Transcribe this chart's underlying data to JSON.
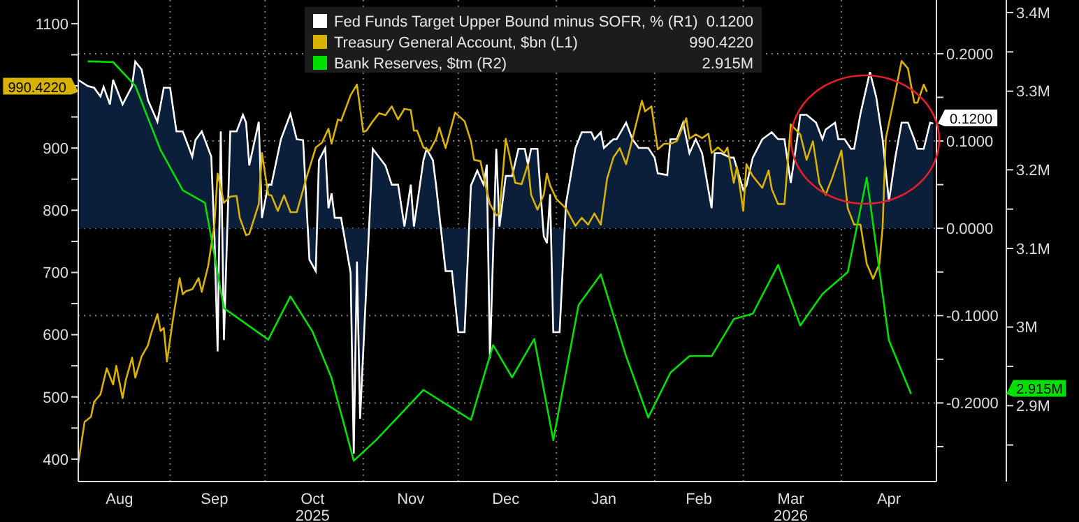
{
  "chart_data": {
    "type": "line",
    "legend": "top",
    "grid": true,
    "xlim": [
      "2025-08-03",
      "2026-05-01"
    ],
    "xticks": [
      {
        "value": "2025-08-16",
        "label": "Aug"
      },
      {
        "value": "2025-09-01",
        "label": null
      },
      {
        "value": "2025-09-15",
        "label": "Sep"
      },
      {
        "value": "2025-10-01",
        "label": null
      },
      {
        "value": "2025-10-16",
        "label": "Oct\n2025"
      },
      {
        "value": "2025-11-01",
        "label": null
      },
      {
        "value": "2025-11-16",
        "label": "Nov"
      },
      {
        "value": "2025-12-01",
        "label": null
      },
      {
        "value": "2025-12-16",
        "label": "Dec"
      },
      {
        "value": "2026-01-01",
        "label": null
      },
      {
        "value": "2026-01-16",
        "label": "Jan"
      },
      {
        "value": "2026-02-01",
        "label": null
      },
      {
        "value": "2026-02-15",
        "label": "Feb"
      },
      {
        "value": "2026-03-01",
        "label": null
      },
      {
        "value": "2026-03-16",
        "label": "Mar\n2026"
      },
      {
        "value": "2026-04-01",
        "label": null
      },
      {
        "value": "2026-04-16",
        "label": "Apr"
      },
      {
        "value": "2026-05-01",
        "label": null
      }
    ],
    "ylim": [
      364,
      1138
    ],
    "yticks": [
      400,
      {
        "value": 450,
        "label": null
      },
      500,
      {
        "value": 550,
        "label": null
      },
      600,
      {
        "value": 650,
        "label": null
      },
      700,
      {
        "value": 750,
        "label": null
      },
      800,
      {
        "value": 850,
        "label": null
      },
      900,
      {
        "value": 950,
        "label": null
      },
      {
        "value": 1000,
        "label": null
      },
      {
        "value": 1050,
        "label": null
      },
      1100
    ],
    "y2lim": [
      -0.29,
      0.2615
    ],
    "y2ticks": [
      {
        "value": -0.25,
        "label": null
      },
      {
        "value": -0.2,
        "label": "-0.2000"
      },
      {
        "value": -0.15,
        "label": null
      },
      {
        "value": -0.1,
        "label": "-0.1000"
      },
      {
        "value": -0.05,
        "label": null
      },
      {
        "value": 0,
        "label": "0.0000"
      },
      {
        "value": 0.05,
        "label": null
      },
      {
        "value": 0.1,
        "label": "0.1000"
      },
      {
        "value": 0.15,
        "label": null
      },
      {
        "value": 0.2,
        "label": "0.2000"
      }
    ],
    "y3lim": [
      2.8035,
      3.416
    ],
    "y3ticks": [
      {
        "value": 2.85,
        "label": null
      },
      {
        "value": 2.9,
        "label": "2.9M"
      },
      {
        "value": 2.95,
        "label": null
      },
      {
        "value": 3.0,
        "label": "3M"
      },
      {
        "value": 3.1,
        "label": "3.1M"
      },
      {
        "value": 3.15,
        "label": null
      },
      {
        "value": 3.2,
        "label": "3.2M"
      },
      {
        "value": 3.3,
        "label": "3.3M"
      },
      {
        "value": 3.35,
        "label": null
      },
      {
        "value": 3.4,
        "label": "3.4M"
      }
    ],
    "annotations": [
      "0.1200",
      "990.4220",
      "2.915M"
    ],
    "series": [
      {
        "name": "Fed Funds Target Upper Bound minus SOFR, % (R1)",
        "type": "area",
        "axis": "y2",
        "color": "#ffffff",
        "x": [
          "2025-08-03",
          "2025-08-06",
          "2025-08-08",
          "2025-08-10",
          "2025-08-11",
          "2025-08-13",
          "2025-08-14",
          "2025-08-17",
          "2025-08-20",
          "2025-08-21",
          "2025-08-23",
          "2025-08-25",
          "2025-08-28",
          "2025-08-30",
          "2025-09-01",
          "2025-09-03",
          "2025-09-05",
          "2025-09-08",
          "2025-09-09",
          "2025-09-11",
          "2025-09-14",
          "2025-09-15",
          "2025-09-16",
          "2025-09-17",
          "2025-09-18",
          "2025-09-20",
          "2025-09-22",
          "2025-09-24",
          "2025-09-25",
          "2025-09-26",
          "2025-09-29",
          "2025-09-30",
          "2025-10-02",
          "2025-10-03",
          "2025-10-06",
          "2025-10-09",
          "2025-10-11",
          "2025-10-13",
          "2025-10-15",
          "2025-10-17",
          "2025-10-18",
          "2025-10-20",
          "2025-10-21",
          "2025-10-22",
          "2025-10-23",
          "2025-10-25",
          "2025-10-28",
          "2025-10-29",
          "2025-10-30",
          "2025-10-31",
          "2025-11-04",
          "2025-11-08",
          "2025-11-10",
          "2025-11-12",
          "2025-11-14",
          "2025-11-16",
          "2025-11-17",
          "2025-11-20",
          "2025-11-21",
          "2025-11-23",
          "2025-11-24",
          "2025-11-27",
          "2025-11-29",
          "2025-12-01",
          "2025-12-03",
          "2025-12-05",
          "2025-12-07",
          "2025-12-09",
          "2025-12-10",
          "2025-12-11",
          "2025-12-13",
          "2025-12-14",
          "2025-12-16",
          "2025-12-18",
          "2025-12-20",
          "2025-12-22",
          "2025-12-23",
          "2025-12-24",
          "2025-12-26",
          "2025-12-28",
          "2025-12-29",
          "2025-12-30",
          "2025-12-31",
          "2026-01-02",
          "2026-01-04",
          "2026-01-07",
          "2026-01-09",
          "2026-01-12",
          "2026-01-13",
          "2026-01-15",
          "2026-01-16",
          "2026-01-19",
          "2026-01-20",
          "2026-01-23",
          "2026-01-25",
          "2026-01-27",
          "2026-01-30",
          "2026-02-01",
          "2026-02-02",
          "2026-02-05",
          "2026-02-06",
          "2026-02-08",
          "2026-02-10",
          "2026-02-12",
          "2026-02-14",
          "2026-02-16",
          "2026-02-18",
          "2026-02-19",
          "2026-02-20",
          "2026-02-22",
          "2026-02-25",
          "2026-02-26",
          "2026-03-01",
          "2026-03-02",
          "2026-03-04",
          "2026-03-07",
          "2026-03-10",
          "2026-03-12",
          "2026-03-14",
          "2026-03-16",
          "2026-03-18",
          "2026-03-19",
          "2026-03-21",
          "2026-03-24",
          "2026-03-26",
          "2026-03-27",
          "2026-03-30",
          "2026-03-31",
          "2026-04-02",
          "2026-04-04",
          "2026-04-05",
          "2026-04-07",
          "2026-04-10",
          "2026-04-12",
          "2026-04-14",
          "2026-04-16",
          "2026-04-18",
          "2026-04-20",
          "2026-04-22",
          "2026-04-24",
          "2026-04-25",
          "2026-04-27",
          "2026-04-29",
          "2026-04-30"
        ],
        "values": [
          0.17,
          0.163,
          0.161,
          0.151,
          0.162,
          0.142,
          0.17,
          0.142,
          0.163,
          0.191,
          0.182,
          0.147,
          0.122,
          0.161,
          0.161,
          0.111,
          0.111,
          0.082,
          0.101,
          0.111,
          0.082,
          -0.009,
          -0.141,
          0.111,
          -0.128,
          0.111,
          0.111,
          0.13,
          0.121,
          0.072,
          0.122,
          0.012,
          0.05,
          0.05,
          0.102,
          0.131,
          0.102,
          0.101,
          -0.036,
          -0.049,
          0.078,
          0.092,
          0.023,
          0.04,
          0.012,
          0.012,
          -0.051,
          -0.258,
          -0.038,
          -0.218,
          0.091,
          0.072,
          0.05,
          0.05,
          0.002,
          0.05,
          0.002,
          0.078,
          0.091,
          0.078,
          0.049,
          -0.049,
          -0.049,
          -0.119,
          -0.119,
          0.049,
          0.066,
          0.05,
          0.073,
          -0.149,
          0.091,
          0.002,
          0.06,
          0.06,
          0.091,
          0.091,
          0.073,
          0.091,
          0.091,
          -0.009,
          -0.017,
          0.039,
          -0.119,
          -0.119,
          0.028,
          0.092,
          0.11,
          0.11,
          0.102,
          0.11,
          0.092,
          0.102,
          0.102,
          0.121,
          0.102,
          0.092,
          0.092,
          0.081,
          0.063,
          0.061,
          0.102,
          0.102,
          0.121,
          0.086,
          0.102,
          0.086,
          0.044,
          0.023,
          0.086,
          0.086,
          0.081,
          0.081,
          0.044,
          0.049,
          0.081,
          0.102,
          0.11,
          0.102,
          0.102,
          0.052,
          0.102,
          0.13,
          0.13,
          0.121,
          0.102,
          0.113,
          0.121,
          0.102,
          0.102,
          0.091,
          0.091,
          0.131,
          0.179,
          0.15,
          0.102,
          0.031,
          0.081,
          0.121,
          0.121,
          0.102,
          0.091,
          0.091,
          0.121,
          0.12
        ]
      },
      {
        "name": "Treasury General Account, $bn (L1)",
        "color": "#d9b100",
        "x": [
          "2025-08-03",
          "2025-08-05",
          "2025-08-07",
          "2025-08-08",
          "2025-08-10",
          "2025-08-12",
          "2025-08-14",
          "2025-08-15",
          "2025-08-17",
          "2025-08-18",
          "2025-08-20",
          "2025-08-21",
          "2025-08-23",
          "2025-08-25",
          "2025-08-26",
          "2025-08-28",
          "2025-08-29",
          "2025-08-30",
          "2025-08-31",
          "2025-09-02",
          "2025-09-04",
          "2025-09-05",
          "2025-09-06",
          "2025-09-08",
          "2025-09-10",
          "2025-09-11",
          "2025-09-13",
          "2025-09-15",
          "2025-09-16",
          "2025-09-18",
          "2025-09-20",
          "2025-09-22",
          "2025-09-23",
          "2025-09-25",
          "2025-09-26",
          "2025-09-29",
          "2025-09-30",
          "2025-10-02",
          "2025-10-03",
          "2025-10-05",
          "2025-10-07",
          "2025-10-09",
          "2025-10-11",
          "2025-10-14",
          "2025-10-17",
          "2025-10-19",
          "2025-10-21",
          "2025-10-22",
          "2025-10-24",
          "2025-10-25",
          "2025-10-28",
          "2025-10-30",
          "2025-11-01",
          "2025-11-02",
          "2025-11-04",
          "2025-11-06",
          "2025-11-08",
          "2025-11-10",
          "2025-11-12",
          "2025-11-14",
          "2025-11-16",
          "2025-11-17",
          "2025-11-18",
          "2025-11-20",
          "2025-11-22",
          "2025-11-24",
          "2025-11-25",
          "2025-11-27",
          "2025-11-30",
          "2025-12-03",
          "2025-12-05",
          "2025-12-06",
          "2025-12-08",
          "2025-12-09",
          "2025-12-11",
          "2025-12-13",
          "2025-12-14",
          "2025-12-16",
          "2025-12-17",
          "2025-12-19",
          "2025-12-21",
          "2025-12-23",
          "2025-12-24",
          "2025-12-26",
          "2025-12-28",
          "2025-12-29",
          "2025-12-30",
          "2026-01-01",
          "2026-01-04",
          "2026-01-07",
          "2026-01-09",
          "2026-01-11",
          "2026-01-13",
          "2026-01-15",
          "2026-01-17",
          "2026-01-19",
          "2026-01-21",
          "2026-01-23",
          "2026-01-25",
          "2026-01-28",
          "2026-01-29",
          "2026-01-31",
          "2026-02-02",
          "2026-02-04",
          "2026-02-06",
          "2026-02-08",
          "2026-02-11",
          "2026-02-12",
          "2026-02-14",
          "2026-02-16",
          "2026-02-18",
          "2026-02-19",
          "2026-02-21",
          "2026-02-23",
          "2026-02-24",
          "2026-02-26",
          "2026-02-27",
          "2026-03-01",
          "2026-03-02",
          "2026-03-04",
          "2026-03-07",
          "2026-03-09",
          "2026-03-10",
          "2026-03-12",
          "2026-03-14",
          "2026-03-16",
          "2026-03-19",
          "2026-03-21",
          "2026-03-23",
          "2026-03-25",
          "2026-03-27",
          "2026-03-29",
          "2026-04-01",
          "2026-04-03",
          "2026-04-05",
          "2026-04-07",
          "2026-04-09",
          "2026-04-11",
          "2026-04-13",
          "2026-04-14",
          "2026-04-15",
          "2026-04-18",
          "2026-04-20",
          "2026-04-22",
          "2026-04-24",
          "2026-04-25",
          "2026-04-27",
          "2026-04-28"
        ],
        "values": [
          393,
          460,
          468,
          492,
          504,
          546,
          520,
          550,
          498,
          527,
          563,
          531,
          565,
          583,
          602,
          633,
          606,
          611,
          557,
          628,
          691,
          665,
          670,
          673,
          691,
          669,
          710,
          777,
          859,
          812,
          822,
          823,
          788,
          760,
          762,
          810,
          892,
          825,
          824,
          799,
          824,
          797,
          797,
          851,
          901,
          909,
          931,
          907,
          946,
          944,
          985,
          1002,
          926,
          928,
          943,
          956,
          953,
          967,
          946,
          963,
          961,
          928,
          928,
          901,
          896,
          915,
          933,
          900,
          957,
          943,
          911,
          881,
          879,
          855,
          810,
          792,
          794,
          915,
          892,
          844,
          842,
          874,
          825,
          801,
          825,
          859,
          840,
          818,
          803,
          775,
          788,
          777,
          795,
          777,
          851,
          885,
          900,
          874,
          915,
          976,
          959,
          967,
          898,
          907,
          907,
          911,
          948,
          915,
          922,
          916,
          923,
          892,
          901,
          892,
          901,
          844,
          870,
          799,
          874,
          855,
          836,
          864,
          834,
          810,
          810,
          938,
          922,
          881,
          911,
          844,
          825,
          851,
          896,
          803,
          777,
          777,
          714,
          690,
          714,
          773,
          915,
          989,
          1040,
          1028,
          973,
          973,
          1002,
          990.422
        ]
      },
      {
        "name": "Bank Reserves, $tm  (R2)",
        "axis": "y3",
        "color": "#00e000",
        "x": [
          "2025-08-06",
          "2025-08-14",
          "2025-08-21",
          "2025-08-29",
          "2025-09-05",
          "2025-09-12",
          "2025-09-18",
          "2025-10-02",
          "2025-10-09",
          "2025-10-16",
          "2025-10-22",
          "2025-10-29",
          "2025-11-05",
          "2025-11-20",
          "2025-12-05",
          "2025-12-12",
          "2025-12-18",
          "2025-12-25",
          "2025-12-31",
          "2026-01-08",
          "2026-01-15",
          "2026-01-23",
          "2026-01-30",
          "2026-02-06",
          "2026-02-12",
          "2026-02-19",
          "2026-02-26",
          "2026-03-04",
          "2026-03-12",
          "2026-03-19",
          "2026-03-26",
          "2026-04-03",
          "2026-04-09",
          "2026-04-16",
          "2026-04-23"
        ],
        "values": [
          3.338,
          3.337,
          3.307,
          3.225,
          3.174,
          3.158,
          3.024,
          2.984,
          3.039,
          2.994,
          2.935,
          2.83,
          2.856,
          2.92,
          2.882,
          2.977,
          2.936,
          2.985,
          2.856,
          3.028,
          3.067,
          2.963,
          2.885,
          2.942,
          2.963,
          2.963,
          3.01,
          3.017,
          3.079,
          3.002,
          3.042,
          3.07,
          3.19,
          2.983,
          2.915
        ]
      }
    ]
  }
}
